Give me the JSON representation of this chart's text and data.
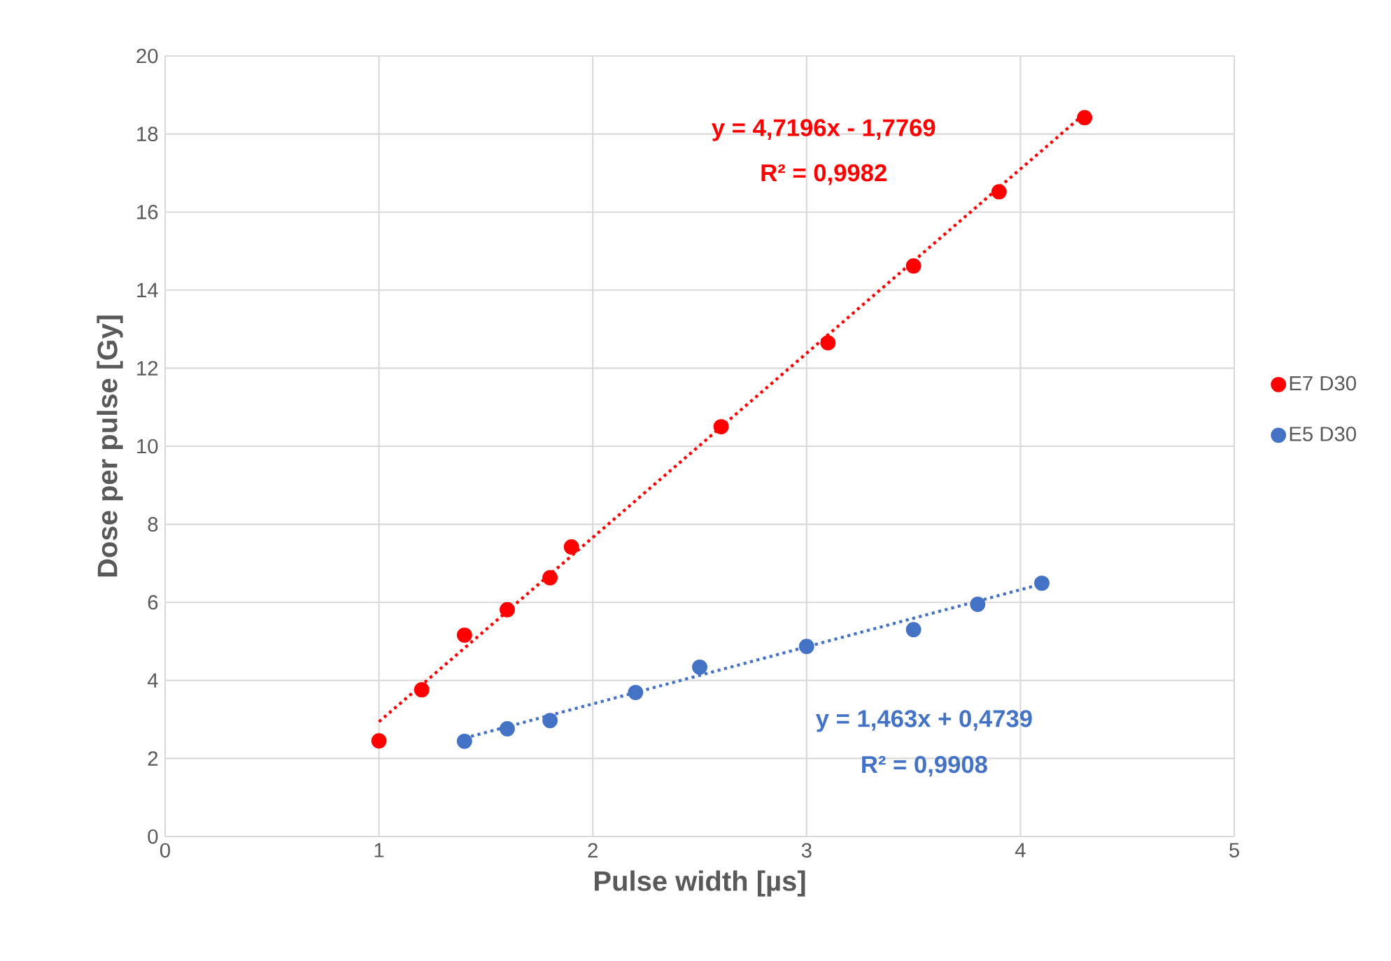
{
  "chart_data": {
    "type": "scatter",
    "xlabel": "Pulse width [µs]",
    "ylabel": "Dose per pulse [Gy]",
    "xlim": [
      0,
      5
    ],
    "ylim": [
      0,
      20
    ],
    "xticks": [
      0,
      1,
      2,
      3,
      4,
      5
    ],
    "yticks": [
      0,
      2,
      4,
      6,
      8,
      10,
      12,
      14,
      16,
      18,
      20
    ],
    "grid": true,
    "legend": "right",
    "marker": "circle",
    "series": [
      {
        "name": "E7 D30",
        "color": "#ff0000",
        "x": [
          1,
          1.2,
          1.4,
          1.6,
          1.8,
          1.9,
          2.6,
          3.1,
          3.5,
          3.9,
          4.3
        ],
        "values": [
          2.45,
          3.76,
          5.16,
          5.81,
          6.63,
          7.42,
          10.5,
          12.65,
          14.62,
          16.52,
          18.42
        ]
      },
      {
        "name": "E5 D30",
        "color": "#4472c4",
        "x": [
          1.4,
          1.6,
          1.8,
          2.2,
          2.5,
          3.0,
          3.5,
          3.8,
          4.1
        ],
        "values": [
          2.44,
          2.76,
          2.97,
          3.69,
          4.34,
          4.87,
          5.3,
          5.95,
          6.49
        ]
      },
      {
        "color": "#ff0000",
        "type": "line",
        "line_style": "dotted",
        "marker": "none",
        "x": [
          1,
          4.3
        ],
        "values": [
          2.94,
          18.52
        ]
      },
      {
        "color": "#4472c4",
        "type": "line",
        "line_style": "dotted",
        "marker": "none",
        "x": [
          1.4,
          4.1
        ],
        "values": [
          2.52,
          6.47
        ]
      }
    ],
    "annotations": [
      "y = 4,7196x - 1,7769",
      "R² = 0,9982",
      "y = 1,463x + 0,4739",
      "R² = 0,9908"
    ]
  }
}
